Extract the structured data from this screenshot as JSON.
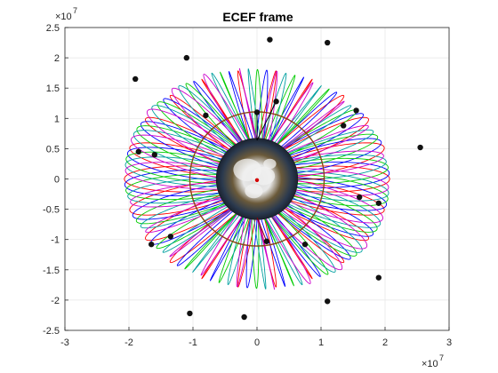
{
  "chart_data": {
    "type": "line",
    "title": "ECEF frame",
    "xlabel": "",
    "ylabel": "",
    "x_exponent_label": "×10",
    "x_exponent": "7",
    "y_exponent_label": "×10",
    "y_exponent": "7",
    "xlim": [
      -3.0,
      3.0
    ],
    "ylim": [
      -2.5,
      2.5
    ],
    "x_ticks": [
      -3,
      -2,
      -1,
      0,
      1,
      2,
      3
    ],
    "x_tick_labels": [
      "-3",
      "-2",
      "-1",
      "0",
      "1",
      "2",
      "3"
    ],
    "y_ticks": [
      -2.5,
      -2,
      -1.5,
      -1,
      -0.5,
      0,
      0.5,
      1,
      1.5,
      2,
      2.5
    ],
    "y_tick_labels": [
      "-2.5",
      "-2",
      "-1.5",
      "-1",
      "-0.5",
      "0",
      "0.5",
      "1",
      "1.5",
      "2",
      "2.5"
    ],
    "grid": true,
    "aspect": "equal",
    "earth_radius_1e7": 0.637,
    "series": [
      {
        "color": "#ff0000",
        "r_min": 1.05,
        "r_max": 2.55,
        "phase_deg": 0
      },
      {
        "color": "#0000ff",
        "r_min": 1.05,
        "r_max": 2.55,
        "phase_deg": 4
      },
      {
        "color": "#00cc00",
        "r_min": 1.05,
        "r_max": 2.55,
        "phase_deg": 8
      },
      {
        "color": "#00a0a0",
        "r_min": 1.05,
        "r_max": 2.55,
        "phase_deg": 12
      },
      {
        "color": "#cc00cc",
        "r_min": 1.05,
        "r_max": 2.55,
        "phase_deg": 16
      }
    ],
    "lobes": 22,
    "inner_circle": {
      "radius": 1.05,
      "color": "#8b4513"
    },
    "satellites": [
      {
        "x": 0.2,
        "y": 2.3
      },
      {
        "x": 1.1,
        "y": 2.25
      },
      {
        "x": -1.1,
        "y": 2.0
      },
      {
        "x": -1.9,
        "y": 1.65
      },
      {
        "x": -0.8,
        "y": 1.05
      },
      {
        "x": 0.0,
        "y": 1.1
      },
      {
        "x": 0.3,
        "y": 1.28
      },
      {
        "x": 1.55,
        "y": 1.13
      },
      {
        "x": 1.35,
        "y": 0.88
      },
      {
        "x": 2.55,
        "y": 0.52
      },
      {
        "x": -1.85,
        "y": 0.45
      },
      {
        "x": -1.6,
        "y": 0.4
      },
      {
        "x": 1.6,
        "y": -0.3
      },
      {
        "x": 1.9,
        "y": -0.4
      },
      {
        "x": -1.35,
        "y": -0.95
      },
      {
        "x": -1.65,
        "y": -1.08
      },
      {
        "x": 0.15,
        "y": -1.03
      },
      {
        "x": 0.75,
        "y": -1.08
      },
      {
        "x": 1.9,
        "y": -1.63
      },
      {
        "x": 1.1,
        "y": -2.02
      },
      {
        "x": -1.05,
        "y": -2.22
      },
      {
        "x": -0.2,
        "y": -2.28
      }
    ],
    "links": [
      {
        "x1": 0.0,
        "y1": 0.637,
        "x2": 0.0,
        "y2": 1.1,
        "color": "#000000"
      },
      {
        "x1": 0.637,
        "y1": 0.0,
        "x2": 1.05,
        "y2": 0.0,
        "color": "#8b0000"
      },
      {
        "x1": 0.0,
        "y1": -0.637,
        "x2": 0.15,
        "y2": -1.03,
        "color": "#8b0000"
      },
      {
        "x1": 0.0,
        "y1": 0.637,
        "x2": 0.3,
        "y2": 1.28,
        "color": "#000000"
      }
    ]
  }
}
